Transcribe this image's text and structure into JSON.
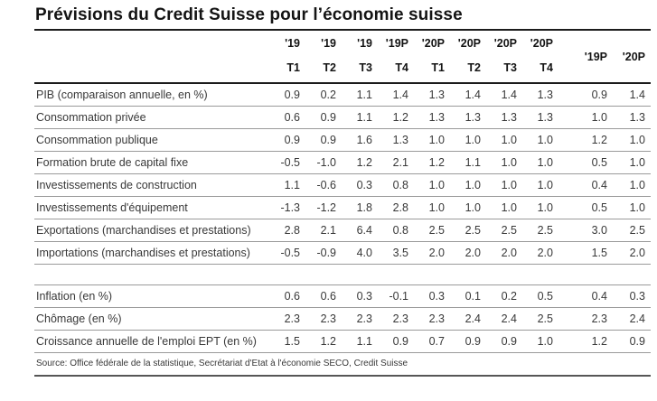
{
  "chart_data": {
    "type": "table",
    "title": "Prévisions du Credit Suisse pour l’économie suisse",
    "columns": {
      "quarters": [
        {
          "year": "'19",
          "quarter": "T1"
        },
        {
          "year": "'19",
          "quarter": "T2"
        },
        {
          "year": "'19",
          "quarter": "T3"
        },
        {
          "year": "'19P",
          "quarter": "T4"
        },
        {
          "year": "'20P",
          "quarter": "T1"
        },
        {
          "year": "'20P",
          "quarter": "T2"
        },
        {
          "year": "'20P",
          "quarter": "T3"
        },
        {
          "year": "'20P",
          "quarter": "T4"
        }
      ],
      "annual": [
        "'19P",
        "'20P"
      ]
    },
    "row_groups": [
      {
        "rows": [
          {
            "label": "PIB (comparaison annuelle, en %)",
            "values": [
              "0.9",
              "0.2",
              "1.1",
              "1.4",
              "1.3",
              "1.4",
              "1.4",
              "1.3"
            ],
            "annual": [
              "0.9",
              "1.4"
            ]
          },
          {
            "label": "Consommation privée",
            "values": [
              "0.6",
              "0.9",
              "1.1",
              "1.2",
              "1.3",
              "1.3",
              "1.3",
              "1.3"
            ],
            "annual": [
              "1.0",
              "1.3"
            ]
          },
          {
            "label": "Consommation publique",
            "values": [
              "0.9",
              "0.9",
              "1.6",
              "1.3",
              "1.0",
              "1.0",
              "1.0",
              "1.0"
            ],
            "annual": [
              "1.2",
              "1.0"
            ]
          },
          {
            "label": "Formation brute de capital fixe",
            "values": [
              "-0.5",
              "-1.0",
              "1.2",
              "2.1",
              "1.2",
              "1.1",
              "1.0",
              "1.0"
            ],
            "annual": [
              "0.5",
              "1.0"
            ]
          },
          {
            "label": "Investissements de construction",
            "values": [
              "1.1",
              "-0.6",
              "0.3",
              "0.8",
              "1.0",
              "1.0",
              "1.0",
              "1.0"
            ],
            "annual": [
              "0.4",
              "1.0"
            ]
          },
          {
            "label": "Investissements d'équipement",
            "values": [
              "-1.3",
              "-1.2",
              "1.8",
              "2.8",
              "1.0",
              "1.0",
              "1.0",
              "1.0"
            ],
            "annual": [
              "0.5",
              "1.0"
            ]
          },
          {
            "label": "Exportations (marchandises et prestations)",
            "values": [
              "2.8",
              "2.1",
              "6.4",
              "0.8",
              "2.5",
              "2.5",
              "2.5",
              "2.5"
            ],
            "annual": [
              "3.0",
              "2.5"
            ]
          },
          {
            "label": "Importations (marchandises et prestations)",
            "values": [
              "-0.5",
              "-0.9",
              "4.0",
              "3.5",
              "2.0",
              "2.0",
              "2.0",
              "2.0"
            ],
            "annual": [
              "1.5",
              "2.0"
            ]
          }
        ]
      },
      {
        "rows": [
          {
            "label": "Inflation (en %)",
            "values": [
              "0.6",
              "0.6",
              "0.3",
              "-0.1",
              "0.3",
              "0.1",
              "0.2",
              "0.5"
            ],
            "annual": [
              "0.4",
              "0.3"
            ]
          },
          {
            "label": "Chômage (en %)",
            "values": [
              "2.3",
              "2.3",
              "2.3",
              "2.3",
              "2.3",
              "2.4",
              "2.4",
              "2.5"
            ],
            "annual": [
              "2.3",
              "2.4"
            ]
          },
          {
            "label": "Croissance annuelle de l'emploi EPT (en %)",
            "values": [
              "1.5",
              "1.2",
              "1.1",
              "0.9",
              "0.7",
              "0.9",
              "0.9",
              "1.0"
            ],
            "annual": [
              "1.2",
              "0.9"
            ]
          }
        ]
      }
    ],
    "source": "Source: Office fédérale de la statistique, Secrétariat d'Etat à l'économie SECO, Credit Suisse",
    "colors": {
      "text": "#383838",
      "heading": "#141414",
      "row_line": "#9a9a9a",
      "strong_line": "#1c1c1c"
    }
  }
}
